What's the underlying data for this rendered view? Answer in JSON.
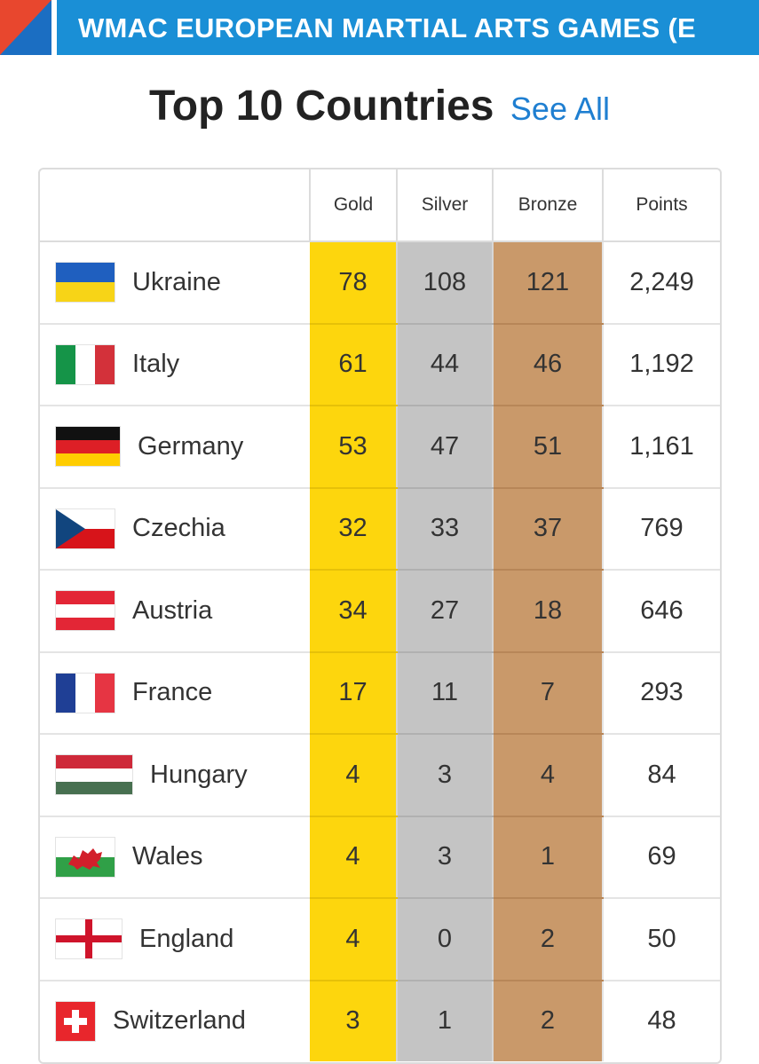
{
  "banner": {
    "title": "WMAC EUROPEAN MARTIAL ARTS GAMES (E",
    "logo_colors": [
      "#1b6ec2",
      "#e8472e"
    ],
    "bar_color": "#1a8fd6"
  },
  "heading": {
    "title": "Top 10 Countries",
    "link": "See All"
  },
  "table": {
    "headers": [
      "",
      "Gold",
      "Silver",
      "Bronze",
      "Points"
    ],
    "column_colors": {
      "gold": "#fdd60d",
      "silver": "#c4c4c4",
      "bronze": "#c9996a"
    },
    "rows": [
      {
        "country": "Ukraine",
        "flag": "ukraine-flag-icon",
        "gold": "78",
        "silver": "108",
        "bronze": "121",
        "points": "2,249"
      },
      {
        "country": "Italy",
        "flag": "italy-flag-icon",
        "gold": "61",
        "silver": "44",
        "bronze": "46",
        "points": "1,192"
      },
      {
        "country": "Germany",
        "flag": "germany-flag-icon",
        "gold": "53",
        "silver": "47",
        "bronze": "51",
        "points": "1,161"
      },
      {
        "country": "Czechia",
        "flag": "czechia-flag-icon",
        "gold": "32",
        "silver": "33",
        "bronze": "37",
        "points": "769"
      },
      {
        "country": "Austria",
        "flag": "austria-flag-icon",
        "gold": "34",
        "silver": "27",
        "bronze": "18",
        "points": "646"
      },
      {
        "country": "France",
        "flag": "france-flag-icon",
        "gold": "17",
        "silver": "11",
        "bronze": "7",
        "points": "293"
      },
      {
        "country": "Hungary",
        "flag": "hungary-flag-icon",
        "gold": "4",
        "silver": "3",
        "bronze": "4",
        "points": "84"
      },
      {
        "country": "Wales",
        "flag": "wales-flag-icon",
        "gold": "4",
        "silver": "3",
        "bronze": "1",
        "points": "69"
      },
      {
        "country": "England",
        "flag": "england-flag-icon",
        "gold": "4",
        "silver": "0",
        "bronze": "2",
        "points": "50"
      },
      {
        "country": "Switzerland",
        "flag": "switzerland-flag-icon",
        "gold": "3",
        "silver": "1",
        "bronze": "2",
        "points": "48"
      }
    ]
  }
}
